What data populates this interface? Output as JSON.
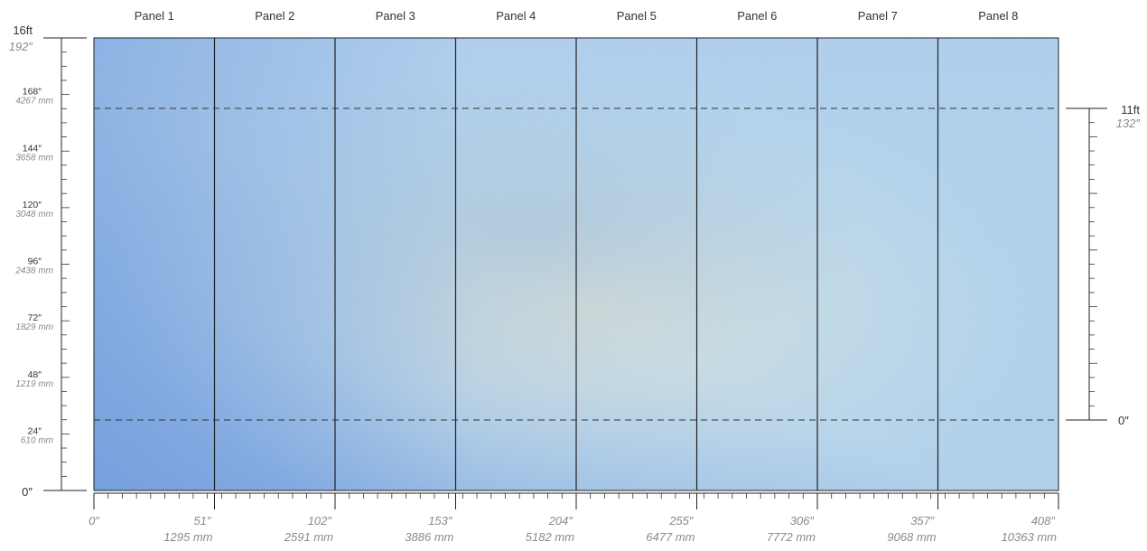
{
  "panels": [
    "Panel 1",
    "Panel 2",
    "Panel 3",
    "Panel 4",
    "Panel 5",
    "Panel 6",
    "Panel 7",
    "Panel 8"
  ],
  "left_ruler": {
    "top_feet": "16ft",
    "top_inches": "192″",
    "labels": [
      {
        "inches": "168″",
        "mm": "4267 mm"
      },
      {
        "inches": "144″",
        "mm": "3658 mm"
      },
      {
        "inches": "120″",
        "mm": "3048 mm"
      },
      {
        "inches": "96″",
        "mm": "2438 mm"
      },
      {
        "inches": "72″",
        "mm": "1829 mm"
      },
      {
        "inches": "48″",
        "mm": "1219 mm"
      },
      {
        "inches": "24″",
        "mm": "610 mm"
      }
    ],
    "zero": "0″"
  },
  "right_ruler": {
    "top_feet": "11ft",
    "top_inches": "132″",
    "zero": "0″"
  },
  "bottom_ruler": {
    "zero": "0″",
    "labels": [
      {
        "inches": "51″",
        "mm": "1295 mm"
      },
      {
        "inches": "102″",
        "mm": "2591 mm"
      },
      {
        "inches": "153″",
        "mm": "3886 mm"
      },
      {
        "inches": "204″",
        "mm": "5182 mm"
      },
      {
        "inches": "255″",
        "mm": "6477 mm"
      },
      {
        "inches": "306″",
        "mm": "7772 mm"
      },
      {
        "inches": "357″",
        "mm": "9068 mm"
      },
      {
        "inches": "408″",
        "mm": "10363 mm"
      }
    ]
  },
  "colors": {
    "wall_blue": "#7ea6dc",
    "wall_light": "#c4e2ea",
    "wall_warm": "#e8dcc0",
    "line": "#222222",
    "italic_text": "#8a8a8a"
  }
}
